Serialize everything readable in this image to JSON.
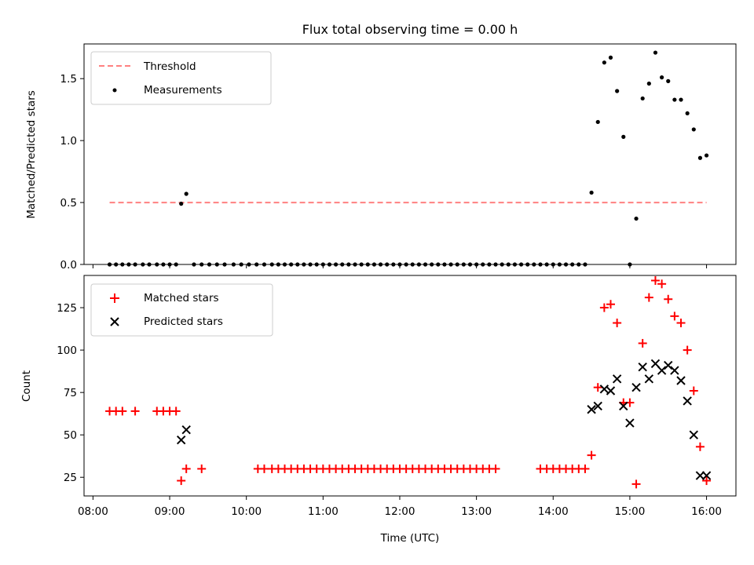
{
  "chart_data": [
    {
      "type": "scatter",
      "title": "Flux total observing time = 0.00 h",
      "xlabel": "",
      "ylabel": "Matched/Predicted stars",
      "xlim": [
        "07:53",
        "16:23"
      ],
      "ylim": [
        0,
        1.78
      ],
      "yticks": [
        0.0,
        0.5,
        1.0,
        1.5
      ],
      "ytick_labels": [
        "0.0",
        "0.5",
        "1.0",
        "1.5"
      ],
      "xtick_labels_shown": false,
      "grid": false,
      "legend": {
        "position": "top-left",
        "entries": [
          "Threshold",
          "Measurements"
        ]
      },
      "threshold": {
        "name": "Threshold",
        "value": 0.5,
        "x_start": "08:13",
        "x_end": "16:00",
        "color": "#ff8080",
        "style": "dashed"
      },
      "series": [
        {
          "name": "Measurements",
          "color": "#000000",
          "marker": "dot",
          "x": [
            "08:13",
            "08:18",
            "08:23",
            "08:28",
            "08:33",
            "08:39",
            "08:44",
            "08:50",
            "08:55",
            "09:00",
            "09:05",
            "09:09",
            "09:13",
            "09:19",
            "09:25",
            "09:31",
            "09:37",
            "09:43",
            "09:50",
            "09:56",
            "10:02",
            "10:08",
            "10:14",
            "10:20",
            "10:25",
            "10:30",
            "10:35",
            "10:40",
            "10:45",
            "10:50",
            "10:55",
            "11:00",
            "11:05",
            "11:10",
            "11:15",
            "11:20",
            "11:25",
            "11:30",
            "11:35",
            "11:40",
            "11:45",
            "11:50",
            "11:55",
            "12:00",
            "12:05",
            "12:10",
            "12:15",
            "12:20",
            "12:25",
            "12:30",
            "12:35",
            "12:40",
            "12:45",
            "12:50",
            "12:55",
            "13:00",
            "13:05",
            "13:10",
            "13:15",
            "13:20",
            "13:25",
            "13:30",
            "13:35",
            "13:40",
            "13:45",
            "13:50",
            "13:55",
            "14:00",
            "14:05",
            "14:10",
            "14:15",
            "14:20",
            "14:25",
            "14:30",
            "14:35",
            "14:40",
            "14:45",
            "14:50",
            "14:55",
            "15:00",
            "15:05",
            "15:10",
            "15:15",
            "15:20",
            "15:25",
            "15:30",
            "15:35",
            "15:40",
            "15:45",
            "15:50",
            "15:55",
            "16:00"
          ],
          "y": [
            0.0,
            0.0,
            0.0,
            0.0,
            0.0,
            0.0,
            0.0,
            0.0,
            0.0,
            0.0,
            0.0,
            0.49,
            0.57,
            0.0,
            0.0,
            0.0,
            0.0,
            0.0,
            0.0,
            0.0,
            0.0,
            0.0,
            0.0,
            0.0,
            0.0,
            0.0,
            0.0,
            0.0,
            0.0,
            0.0,
            0.0,
            0.0,
            0.0,
            0.0,
            0.0,
            0.0,
            0.0,
            0.0,
            0.0,
            0.0,
            0.0,
            0.0,
            0.0,
            0.0,
            0.0,
            0.0,
            0.0,
            0.0,
            0.0,
            0.0,
            0.0,
            0.0,
            0.0,
            0.0,
            0.0,
            0.0,
            0.0,
            0.0,
            0.0,
            0.0,
            0.0,
            0.0,
            0.0,
            0.0,
            0.0,
            0.0,
            0.0,
            0.0,
            0.0,
            0.0,
            0.0,
            0.0,
            0.0,
            0.58,
            1.15,
            1.63,
            1.67,
            1.4,
            1.03,
            0.0,
            0.37,
            1.34,
            1.46,
            1.71,
            1.51,
            1.48,
            1.33,
            1.33,
            1.22,
            1.09,
            0.86,
            0.88
          ]
        }
      ]
    },
    {
      "type": "scatter",
      "title": "",
      "xlabel": "Time (UTC)",
      "ylabel": "Count",
      "xlim": [
        "07:53",
        "16:23"
      ],
      "ylim": [
        14,
        144
      ],
      "yticks": [
        25,
        50,
        75,
        100,
        125
      ],
      "ytick_labels": [
        "25",
        "50",
        "75",
        "100",
        "125"
      ],
      "xticks": [
        "08:00",
        "09:00",
        "10:00",
        "11:00",
        "12:00",
        "13:00",
        "14:00",
        "15:00",
        "16:00"
      ],
      "xtick_labels": [
        "08:00",
        "09:00",
        "10:00",
        "11:00",
        "12:00",
        "13:00",
        "14:00",
        "15:00",
        "16:00"
      ],
      "grid": false,
      "legend": {
        "position": "top-left",
        "entries": [
          "Matched stars",
          "Predicted stars"
        ]
      },
      "series": [
        {
          "name": "Matched stars",
          "color": "#ff0000",
          "marker": "plus",
          "x": [
            "08:13",
            "08:18",
            "08:23",
            "08:33",
            "08:50",
            "08:55",
            "09:00",
            "09:05",
            "09:09",
            "09:13",
            "09:25",
            "10:09",
            "10:14",
            "10:20",
            "10:25",
            "10:30",
            "10:35",
            "10:40",
            "10:45",
            "10:50",
            "10:55",
            "11:00",
            "11:05",
            "11:10",
            "11:15",
            "11:20",
            "11:25",
            "11:30",
            "11:35",
            "11:40",
            "11:45",
            "11:50",
            "11:55",
            "12:00",
            "12:05",
            "12:10",
            "12:15",
            "12:20",
            "12:25",
            "12:30",
            "12:35",
            "12:40",
            "12:45",
            "12:50",
            "12:55",
            "13:00",
            "13:05",
            "13:10",
            "13:15",
            "13:50",
            "13:55",
            "14:00",
            "14:05",
            "14:10",
            "14:15",
            "14:20",
            "14:25",
            "14:30",
            "14:35",
            "14:40",
            "14:45",
            "14:50",
            "14:55",
            "15:00",
            "15:05",
            "15:10",
            "15:15",
            "15:20",
            "15:25",
            "15:30",
            "15:35",
            "15:40",
            "15:45",
            "15:50",
            "15:55",
            "16:00"
          ],
          "y": [
            64,
            64,
            64,
            64,
            64,
            64,
            64,
            64,
            23,
            30,
            30,
            30,
            30,
            30,
            30,
            30,
            30,
            30,
            30,
            30,
            30,
            30,
            30,
            30,
            30,
            30,
            30,
            30,
            30,
            30,
            30,
            30,
            30,
            30,
            30,
            30,
            30,
            30,
            30,
            30,
            30,
            30,
            30,
            30,
            30,
            30,
            30,
            30,
            30,
            30,
            30,
            30,
            30,
            30,
            30,
            30,
            30,
            38,
            78,
            125,
            127,
            116,
            69,
            69,
            21,
            104,
            131,
            141,
            139,
            130,
            120,
            116,
            100,
            76,
            43,
            23
          ]
        },
        {
          "name": "Predicted stars",
          "color": "#000000",
          "marker": "x",
          "x": [
            "09:09",
            "09:13",
            "14:30",
            "14:35",
            "14:40",
            "14:45",
            "14:50",
            "14:55",
            "15:00",
            "15:05",
            "15:10",
            "15:15",
            "15:20",
            "15:25",
            "15:30",
            "15:35",
            "15:40",
            "15:45",
            "15:50",
            "15:55",
            "16:00"
          ],
          "y": [
            47,
            53,
            65,
            67,
            77,
            76,
            83,
            67,
            57,
            78,
            90,
            83,
            92,
            88,
            91,
            88,
            82,
            70,
            50,
            26,
            26
          ]
        }
      ]
    }
  ]
}
